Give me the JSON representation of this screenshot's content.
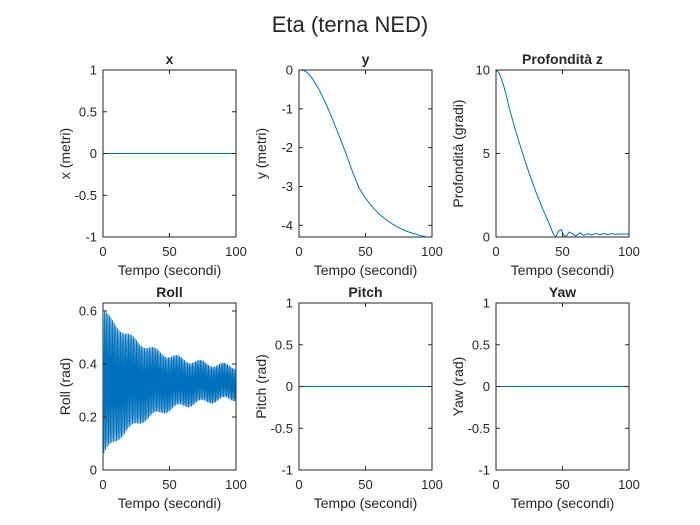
{
  "figure": {
    "title": "Eta (terna NED)",
    "line_color": "#0072BD"
  },
  "chart_data": [
    {
      "type": "line",
      "title": "x",
      "xlabel": "Tempo (secondi)",
      "ylabel": "x (metri)",
      "xlim": [
        0,
        100
      ],
      "ylim": [
        -1,
        1
      ],
      "xticks": [
        0,
        50,
        100
      ],
      "yticks": [
        -1,
        -0.5,
        0,
        0.5,
        1
      ],
      "series": [
        {
          "x": [
            0,
            100
          ],
          "y": [
            0,
            0
          ]
        }
      ]
    },
    {
      "type": "line",
      "title": "y",
      "xlabel": "Tempo (secondi)",
      "ylabel": "y (metri)",
      "xlim": [
        0,
        100
      ],
      "ylim": [
        -4.3,
        0
      ],
      "xticks": [
        0,
        50,
        100
      ],
      "yticks": [
        -4,
        -3,
        -2,
        -1,
        0
      ],
      "series": [
        {
          "x": [
            0,
            2,
            4,
            6,
            8,
            10,
            15,
            20,
            25,
            30,
            35,
            40,
            45,
            50,
            55,
            60,
            65,
            70,
            75,
            80,
            85,
            90,
            95,
            100
          ],
          "y": [
            0,
            0,
            -0.02,
            -0.06,
            -0.13,
            -0.22,
            -0.5,
            -0.85,
            -1.25,
            -1.68,
            -2.12,
            -2.6,
            -3.03,
            -3.3,
            -3.52,
            -3.7,
            -3.84,
            -3.96,
            -4.06,
            -4.14,
            -4.2,
            -4.25,
            -4.29,
            -4.33
          ]
        }
      ]
    },
    {
      "type": "line",
      "title": "Profondità z",
      "xlabel": "Tempo (secondi)",
      "ylabel": "Profondità (gradi)",
      "xlim": [
        0,
        100
      ],
      "ylim": [
        0,
        10
      ],
      "xticks": [
        0,
        50,
        100
      ],
      "yticks": [
        0,
        5,
        10
      ],
      "series": [
        {
          "x": [
            0,
            2,
            4,
            6,
            8,
            10,
            15,
            20,
            25,
            30,
            35,
            40,
            43,
            45,
            47,
            49,
            51,
            53,
            55,
            57,
            60,
            63,
            66,
            69,
            72,
            75,
            78,
            81,
            84,
            87,
            90,
            93,
            96,
            100
          ],
          "y": [
            10,
            9.85,
            9.5,
            9.0,
            8.4,
            7.7,
            6.3,
            5.0,
            3.8,
            2.7,
            1.7,
            0.8,
            0.2,
            0.0,
            0.35,
            0.45,
            0.1,
            0.05,
            0.3,
            0.22,
            0.05,
            0.25,
            0.1,
            0.2,
            0.12,
            0.22,
            0.14,
            0.2,
            0.15,
            0.2,
            0.16,
            0.19,
            0.17,
            0.18
          ]
        }
      ]
    },
    {
      "type": "line",
      "title": "Roll",
      "xlabel": "Tempo (secondi)",
      "ylabel": "Roll (rad)",
      "xlim": [
        0,
        100
      ],
      "ylim": [
        0,
        0.63
      ],
      "xticks": [
        0,
        50,
        100
      ],
      "yticks": [
        0,
        0.2,
        0.4,
        0.6
      ],
      "oscillation": {
        "center": 0.33,
        "initial_amplitude": 0.29,
        "final_amplitude": 0.05,
        "period": 1.2
      }
    },
    {
      "type": "line",
      "title": "Pitch",
      "xlabel": "Tempo (secondi)",
      "ylabel": "Pitch (rad)",
      "xlim": [
        0,
        100
      ],
      "ylim": [
        -1,
        1
      ],
      "xticks": [
        0,
        50,
        100
      ],
      "yticks": [
        -1,
        -0.5,
        0,
        0.5,
        1
      ],
      "series": [
        {
          "x": [
            0,
            100
          ],
          "y": [
            0,
            0
          ]
        }
      ]
    },
    {
      "type": "line",
      "title": "Yaw",
      "xlabel": "Tempo (secondi)",
      "ylabel": "Yaw (rad)",
      "xlim": [
        0,
        100
      ],
      "ylim": [
        -1,
        1
      ],
      "xticks": [
        0,
        50,
        100
      ],
      "yticks": [
        -1,
        -0.5,
        0,
        0.5,
        1
      ],
      "series": [
        {
          "x": [
            0,
            100
          ],
          "y": [
            0,
            0
          ]
        }
      ]
    }
  ]
}
